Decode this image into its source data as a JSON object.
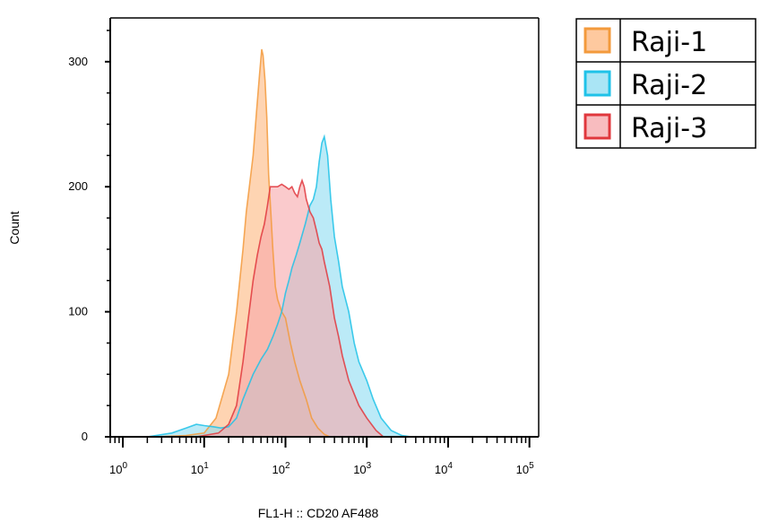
{
  "chart_data": {
    "type": "area",
    "xscale": "log",
    "xlim": [
      0.7,
      130000
    ],
    "ylim": [
      0,
      335
    ],
    "xlabel": "FL1-H :: CD20 AF488",
    "ylabel": "Count",
    "y_ticks": [
      0,
      100,
      200,
      300
    ],
    "x_ticks": [
      {
        "value": 1,
        "base": "10",
        "exp": "0"
      },
      {
        "value": 10,
        "base": "10",
        "exp": "1"
      },
      {
        "value": 100,
        "base": "10",
        "exp": "2"
      },
      {
        "value": 1000,
        "base": "10",
        "exp": "3"
      },
      {
        "value": 10000,
        "base": "10",
        "exp": "4"
      },
      {
        "value": 100000,
        "base": "10",
        "exp": "5"
      }
    ],
    "legend_position": "top-right, outside plot",
    "series": [
      {
        "name": "Raji-1",
        "fill": "#fdb77f",
        "stroke": "#f39a3c",
        "x": [
          2.5,
          6,
          10,
          14,
          20,
          25,
          30,
          33,
          36,
          40,
          44,
          48,
          51,
          53,
          56,
          59,
          62,
          66,
          70,
          75,
          80,
          90,
          100,
          115,
          130,
          150,
          180,
          210,
          250,
          300,
          350
        ],
        "y": [
          0,
          1,
          3,
          15,
          50,
          100,
          150,
          180,
          200,
          225,
          260,
          290,
          310,
          305,
          285,
          255,
          210,
          180,
          150,
          120,
          110,
          100,
          95,
          75,
          60,
          45,
          30,
          15,
          7,
          2,
          0
        ]
      },
      {
        "name": "Raji-2",
        "fill": "#8ddcf2",
        "stroke": "#1fc2e8",
        "x": [
          2,
          4,
          6,
          8,
          10,
          13,
          16,
          20,
          25,
          30,
          40,
          50,
          60,
          70,
          80,
          90,
          100,
          110,
          120,
          135,
          150,
          175,
          200,
          220,
          240,
          260,
          280,
          300,
          330,
          360,
          400,
          450,
          500,
          600,
          700,
          800,
          1000,
          1200,
          1500,
          2000,
          2700,
          3500
        ],
        "y": [
          0,
          3,
          7,
          10,
          9,
          8,
          7,
          8,
          15,
          30,
          50,
          62,
          70,
          80,
          90,
          100,
          115,
          125,
          135,
          145,
          155,
          170,
          185,
          190,
          200,
          220,
          235,
          240,
          225,
          190,
          160,
          140,
          120,
          100,
          75,
          60,
          45,
          30,
          15,
          5,
          1,
          0
        ]
      },
      {
        "name": "Raji-3",
        "fill": "#f6a6aa",
        "stroke": "#e0373d",
        "x": [
          8,
          15,
          20,
          25,
          30,
          35,
          40,
          45,
          50,
          55,
          60,
          65,
          70,
          80,
          90,
          100,
          110,
          120,
          130,
          140,
          150,
          160,
          170,
          180,
          190,
          200,
          220,
          240,
          260,
          280,
          300,
          350,
          400,
          450,
          500,
          600,
          800,
          1000,
          1300,
          1600
        ],
        "y": [
          0,
          3,
          10,
          25,
          60,
          95,
          125,
          145,
          160,
          170,
          185,
          200,
          200,
          200,
          202,
          200,
          198,
          200,
          195,
          192,
          200,
          205,
          200,
          190,
          185,
          180,
          175,
          165,
          155,
          150,
          140,
          120,
          95,
          80,
          65,
          45,
          25,
          15,
          5,
          0
        ]
      }
    ]
  }
}
